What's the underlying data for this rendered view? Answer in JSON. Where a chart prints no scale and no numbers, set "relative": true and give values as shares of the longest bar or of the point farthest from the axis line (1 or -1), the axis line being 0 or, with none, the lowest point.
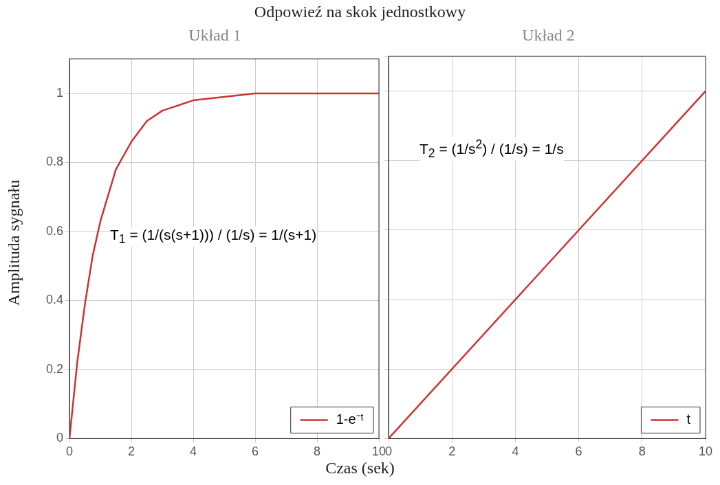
{
  "chart_data": [
    {
      "type": "line",
      "title": "Odpowieź na skok jednostkowy",
      "subtitle": "Układ 1",
      "xlabel": "Czas (sek)",
      "ylabel": "Amplituda sygnału",
      "series": [
        {
          "name": "1-e⁻ᵗ",
          "color": "#cc3333",
          "x": [
            0,
            0.25,
            0.5,
            0.75,
            1,
            1.5,
            2,
            2.5,
            3,
            4,
            5,
            6,
            8,
            10
          ],
          "values": [
            0,
            0.22,
            0.39,
            0.53,
            0.63,
            0.78,
            0.86,
            0.92,
            0.95,
            0.98,
            0.99,
            1,
            1,
            1
          ]
        }
      ],
      "xlim": [
        0,
        10
      ],
      "xticks": [
        0,
        2,
        4,
        6,
        8,
        10
      ],
      "ylim": [
        0,
        1.1
      ],
      "yticks": [
        0,
        0.2,
        0.4,
        0.6,
        0.8,
        1
      ],
      "grid": true,
      "legend": "bottom right",
      "marker": "none",
      "line_style": "solid",
      "annotations": [
        "T$_{1}$ = (1/(s(s+1))) / (1/s) = 1/(s+1)"
      ]
    },
    {
      "type": "line",
      "subtitle": "Układ 2",
      "relative": true,
      "series": [
        {
          "name": "t",
          "color": "#cc3333",
          "x": [
            0,
            10
          ],
          "values": [
            0,
            1
          ]
        }
      ],
      "xlim": [
        0,
        10
      ],
      "xticks": [
        0,
        2,
        4,
        6,
        8,
        10
      ],
      "grid": true,
      "legend": "bottom right",
      "marker": "none",
      "line_style": "solid",
      "annotations": [
        "T$_{2}$ = (1/s$^{2}$) / (1/s) = 1/s"
      ]
    }
  ]
}
